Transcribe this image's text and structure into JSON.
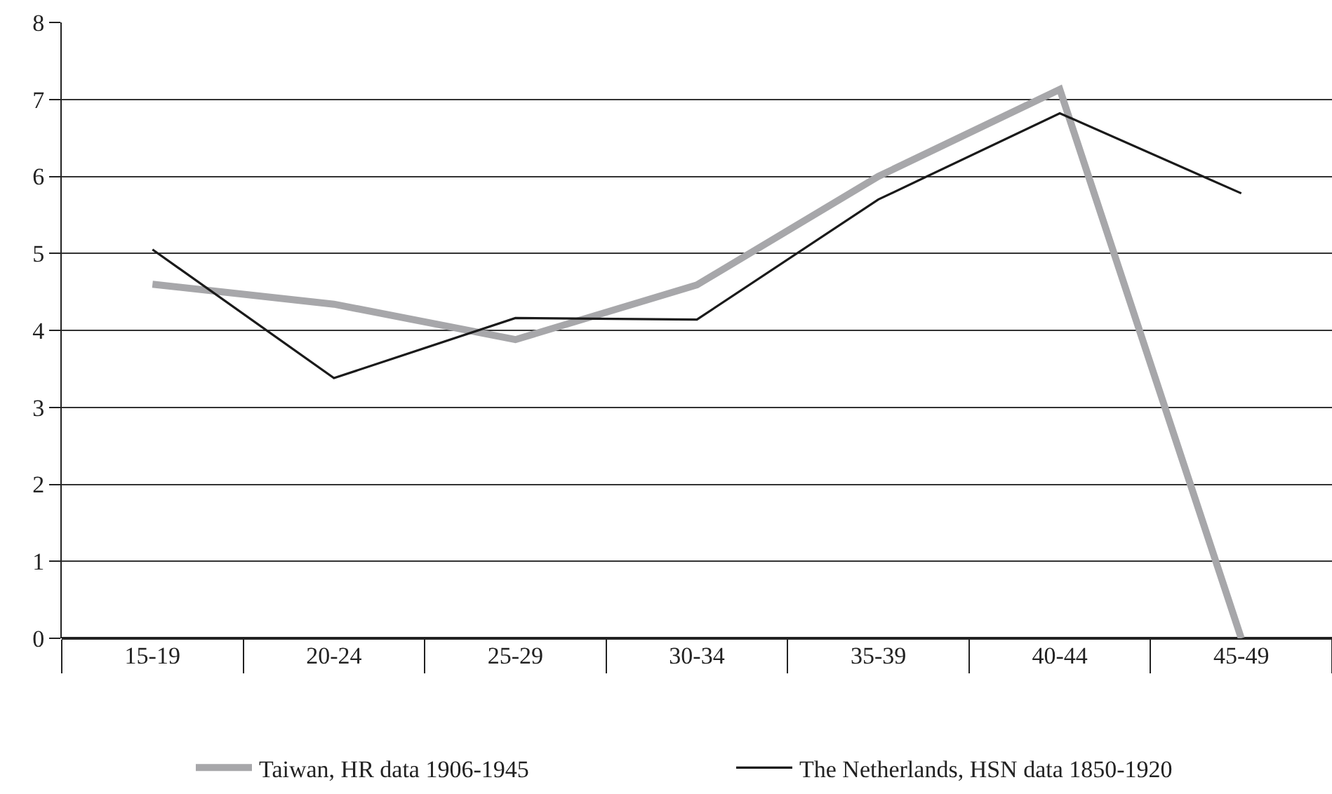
{
  "chart_data": {
    "type": "line",
    "categories": [
      "15-19",
      "20-24",
      "25-29",
      "30-34",
      "35-39",
      "40-44",
      "45-49"
    ],
    "series": [
      {
        "name": "Taiwan, HR data 1906-1945",
        "color": "#a7a7aa",
        "values": [
          4.6,
          4.34,
          3.88,
          4.59,
          6.0,
          7.13,
          0
        ]
      },
      {
        "name": "The Netherlands, HSN data 1850-1920",
        "color": "#1a1a1a",
        "values": [
          5.05,
          3.38,
          4.16,
          4.14,
          5.7,
          6.82,
          5.78
        ]
      }
    ],
    "ylim": [
      0,
      8
    ],
    "yticks": [
      0,
      1,
      2,
      3,
      4,
      5,
      6,
      7,
      8
    ],
    "grid": "y",
    "legend": "bottom",
    "marker": "none",
    "line_style": "solid"
  }
}
